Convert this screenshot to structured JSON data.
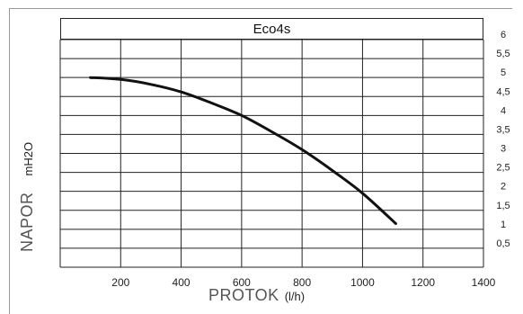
{
  "chart_data": {
    "type": "line",
    "title": "Eco4s",
    "xlabel": "PROTOK",
    "xlabel_unit": "(l/h)",
    "ylabel": "NAPOR",
    "ylabel_unit": "mH2O",
    "xlim": [
      0,
      1400
    ],
    "ylim": [
      0,
      6
    ],
    "x_ticks": [
      "200",
      "400",
      "600",
      "800",
      "1000",
      "1200",
      "1400"
    ],
    "y_ticks": [
      "0,5",
      "1",
      "1,5",
      "2",
      "2,5",
      "3",
      "3,5",
      "4",
      "4,5",
      "5",
      "5,5",
      "6"
    ],
    "grid": true,
    "series": [
      {
        "x": [
          100,
          200,
          300,
          400,
          500,
          600,
          700,
          800,
          900,
          1000,
          1110
        ],
        "y": [
          5.0,
          4.95,
          4.82,
          4.62,
          4.33,
          4.0,
          3.57,
          3.1,
          2.55,
          1.95,
          1.15
        ]
      }
    ]
  }
}
